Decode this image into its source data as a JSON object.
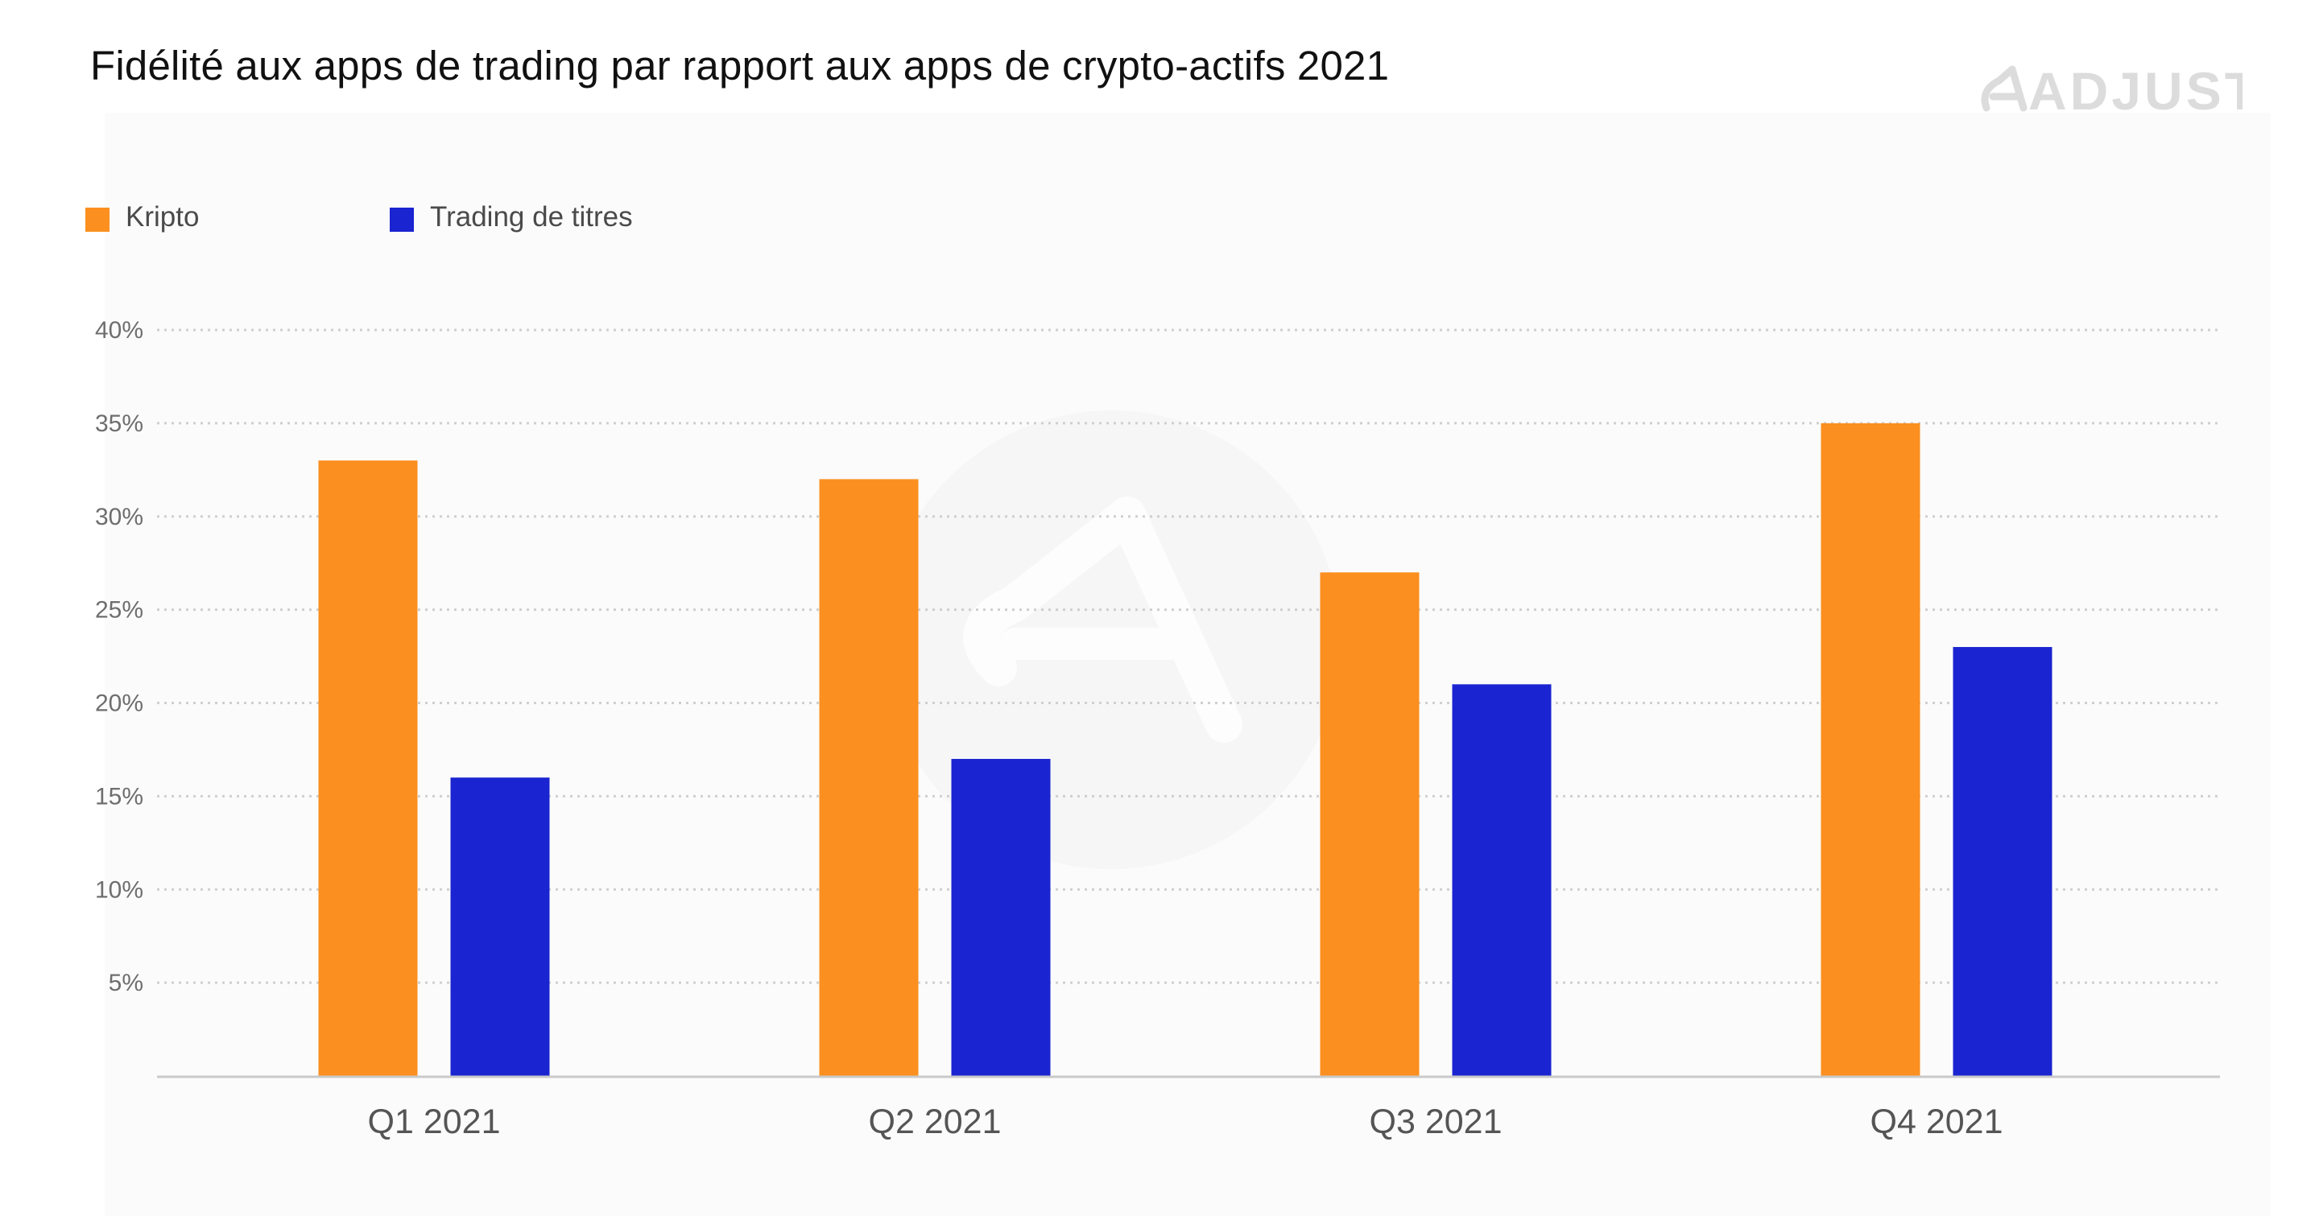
{
  "chart_data": {
    "type": "bar",
    "title": "Fidélité aux apps de trading par rapport aux apps de crypto-actifs 2021",
    "brand": "ADJUST",
    "categories": [
      "Q1 2021",
      "Q2 2021",
      "Q3 2021",
      "Q4 2021"
    ],
    "series": [
      {
        "name": "Kripto",
        "color": "#fb8f1f",
        "values": [
          33,
          32,
          27,
          35
        ]
      },
      {
        "name": "Trading de titres",
        "color": "#1a24d0",
        "values": [
          16,
          17,
          21,
          23
        ]
      }
    ],
    "y_ticks": [
      {
        "value": 5,
        "label": "5%"
      },
      {
        "value": 10,
        "label": "10%"
      },
      {
        "value": 15,
        "label": "15%"
      },
      {
        "value": 20,
        "label": "20%"
      },
      {
        "value": 25,
        "label": "25%"
      },
      {
        "value": 30,
        "label": "30%"
      },
      {
        "value": 35,
        "label": "35%"
      },
      {
        "value": 40,
        "label": "40%"
      }
    ],
    "ylim": [
      0,
      40
    ],
    "grid": true,
    "grid_style": "dotted",
    "legend_position": "top-left",
    "xlabel": "",
    "ylabel": ""
  }
}
